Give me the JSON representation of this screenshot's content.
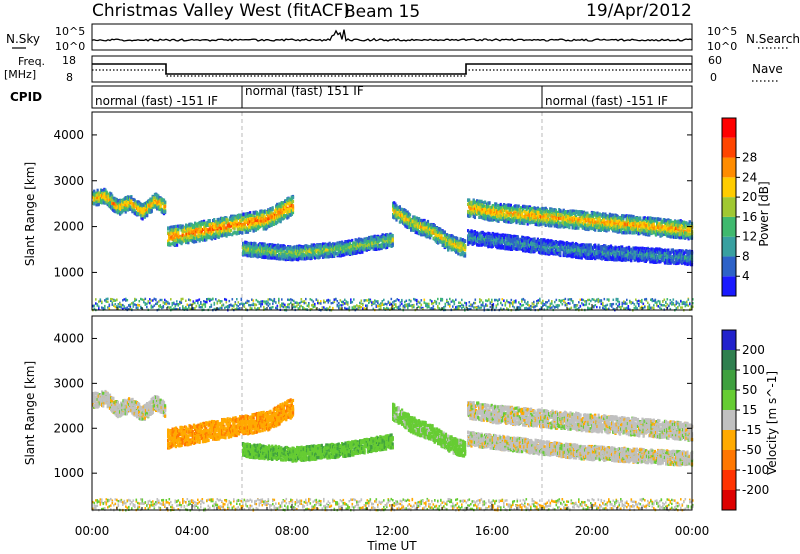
{
  "header": {
    "station": "Christmas Valley West (fitACF)",
    "beam": "Beam 15",
    "date": "19/Apr/2012"
  },
  "strip": {
    "nsky_label": "N.Sky",
    "nsearch_label": "N.Search",
    "noise_ticks": [
      "10^5",
      "10^0"
    ],
    "freq_label": "Freq.",
    "freq_unit": "[MHz]",
    "freq_ticks": [
      "18",
      "8"
    ],
    "nave_label": "Nave",
    "nave_ticks": [
      "60",
      "0"
    ],
    "cpid_label": "CPID",
    "cpid_segments": [
      {
        "label": "normal (fast) -151 IF",
        "start_hour": 0,
        "end_hour": 6
      },
      {
        "label": "normal (fast) 151 IF",
        "start_hour": 6,
        "end_hour": 18
      },
      {
        "label": "normal (fast) -151 IF",
        "start_hour": 18,
        "end_hour": 24
      }
    ]
  },
  "x_axis": {
    "ticks": [
      "00:00",
      "04:00",
      "08:00",
      "12:00",
      "16:00",
      "20:00",
      "00:00"
    ],
    "label": "Time UT"
  },
  "chart_data": [
    {
      "type": "heatmap",
      "quantity": "power",
      "ylabel": "Slant Range [km]",
      "yticks": [
        "1000",
        "2000",
        "3000",
        "4000"
      ],
      "ylim": [
        180,
        4500
      ],
      "xlim": [
        0,
        24
      ],
      "colorbar": {
        "label": "Power [dB]",
        "ticks": [
          "4",
          "8",
          "12",
          "16",
          "20",
          "24",
          "28"
        ],
        "colors": [
          "#1a1aff",
          "#2d62c8",
          "#38a0a0",
          "#3fb96e",
          "#a0c832",
          "#ffcc00",
          "#ff8c00",
          "#ff4500",
          "#ff0000"
        ]
      },
      "bands": [
        {
          "t": [
            0.0,
            0.5,
            1.0,
            1.5,
            2.0,
            2.5,
            2.9
          ],
          "range": [
            2650,
            2700,
            2450,
            2550,
            2350,
            2600,
            2450
          ],
          "width": 320,
          "level": 22
        },
        {
          "t": [
            3.0,
            4.0,
            5.0,
            6.0,
            7.0,
            8.0
          ],
          "range": [
            1800,
            1900,
            2000,
            2100,
            2200,
            2500
          ],
          "width": 420,
          "level": 24
        },
        {
          "t": [
            6.0,
            7.0,
            8.0,
            9.0,
            10.0,
            11.0,
            12.0
          ],
          "range": [
            1550,
            1500,
            1450,
            1500,
            1550,
            1650,
            1750
          ],
          "width": 300,
          "level": 16
        },
        {
          "t": [
            12.0,
            12.8,
            13.5,
            14.2,
            14.9
          ],
          "range": [
            2400,
            2100,
            1950,
            1700,
            1550
          ],
          "width": 350,
          "level": 20
        },
        {
          "t": [
            15.0,
            16.0,
            17.0,
            18.0,
            19.0,
            20.0,
            21.0,
            22.0,
            23.0,
            24.0
          ],
          "range": [
            2450,
            2350,
            2300,
            2250,
            2200,
            2150,
            2100,
            2050,
            2000,
            1950
          ],
          "width": 380,
          "level": 22
        },
        {
          "t": [
            15.0,
            16.5,
            18.0,
            19.5,
            21.0,
            22.5,
            24.0
          ],
          "range": [
            1800,
            1700,
            1600,
            1500,
            1450,
            1400,
            1350
          ],
          "width": 300,
          "level": 10
        }
      ]
    },
    {
      "type": "heatmap",
      "quantity": "velocity",
      "ylabel": "Slant Range [km]",
      "yticks": [
        "1000",
        "2000",
        "3000",
        "4000"
      ],
      "ylim": [
        180,
        4500
      ],
      "xlim": [
        0,
        24
      ],
      "colorbar": {
        "label": "Velocity [m s^-1]",
        "ticks": [
          "200",
          "100",
          "50",
          "15",
          "-15",
          "-50",
          "-100",
          "-200"
        ],
        "colors": [
          "#2222cc",
          "#2f7f4f",
          "#3fa03f",
          "#66cc33",
          "#c0c0c0",
          "#ffaa00",
          "#ff7700",
          "#ff3300",
          "#dd0000"
        ]
      },
      "bands": [
        {
          "t": [
            0.0,
            0.5,
            1.0,
            1.5,
            2.0,
            2.5,
            2.9
          ],
          "range": [
            2650,
            2700,
            2450,
            2550,
            2350,
            2600,
            2450
          ],
          "width": 320,
          "level": 0
        },
        {
          "t": [
            3.0,
            4.0,
            5.0,
            6.0,
            7.0,
            8.0
          ],
          "range": [
            1800,
            1900,
            2000,
            2100,
            2200,
            2500
          ],
          "width": 420,
          "level": -40
        },
        {
          "t": [
            6.0,
            7.0,
            8.0,
            9.0,
            10.0,
            11.0,
            12.0
          ],
          "range": [
            1550,
            1500,
            1450,
            1500,
            1550,
            1650,
            1750
          ],
          "width": 300,
          "level": 40
        },
        {
          "t": [
            12.0,
            12.8,
            13.5,
            14.2,
            14.9
          ],
          "range": [
            2400,
            2100,
            1950,
            1700,
            1550
          ],
          "width": 350,
          "level": 30
        },
        {
          "t": [
            15.0,
            16.0,
            17.0,
            18.0,
            19.0,
            20.0,
            21.0,
            22.0,
            23.0,
            24.0
          ],
          "range": [
            2450,
            2350,
            2300,
            2250,
            2200,
            2150,
            2100,
            2050,
            2000,
            1950
          ],
          "width": 380,
          "level": 0
        },
        {
          "t": [
            15.0,
            16.5,
            18.0,
            19.5,
            21.0,
            22.5,
            24.0
          ],
          "range": [
            1800,
            1700,
            1600,
            1500,
            1450,
            1400,
            1350
          ],
          "width": 300,
          "level": 0
        }
      ]
    }
  ]
}
